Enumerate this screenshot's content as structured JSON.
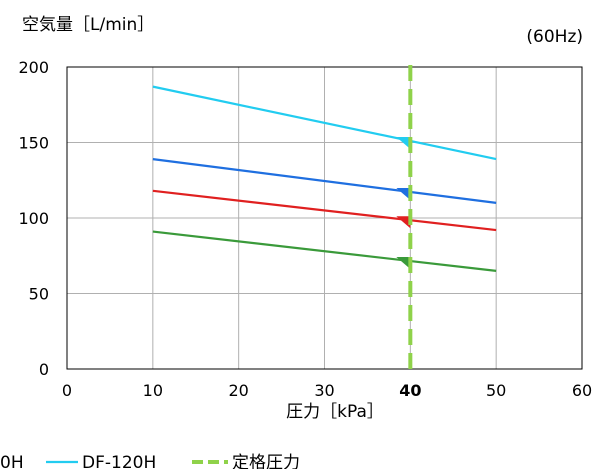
{
  "chart_data": {
    "type": "line",
    "ylabel": "空気量［L/min］",
    "xlabel": "圧力［kPa］",
    "note": "(60Hz)",
    "xlim": [
      0,
      60
    ],
    "ylim": [
      0,
      200
    ],
    "x_ticks": [
      0,
      10,
      20,
      30,
      40,
      50,
      60
    ],
    "y_ticks": [
      0,
      50,
      100,
      150,
      200
    ],
    "highlight_tick": 40,
    "grid": true,
    "legend_position": "bottom",
    "series": [
      {
        "name": "DF-120H",
        "color": "#22ccf0",
        "x": [
          10,
          50
        ],
        "y": [
          187,
          139
        ]
      },
      {
        "color": "#1f6fe0",
        "x": [
          10,
          50
        ],
        "y": [
          139,
          110
        ]
      },
      {
        "color": "#e02020",
        "x": [
          10,
          50
        ],
        "y": [
          118,
          92
        ]
      },
      {
        "color": "#3a9a3a",
        "x": [
          10,
          50
        ],
        "y": [
          91,
          65
        ]
      }
    ],
    "rated_line": {
      "name": "定格圧力",
      "x": 40,
      "color": "#8fd24a"
    },
    "legend_visible": [
      {
        "label": "0H",
        "color": "#1f6fe0"
      },
      {
        "label": "DF-120H",
        "color": "#22ccf0",
        "kind": "line"
      },
      {
        "label": "定格圧力",
        "color": "#8fd24a",
        "kind": "dashed"
      }
    ]
  }
}
